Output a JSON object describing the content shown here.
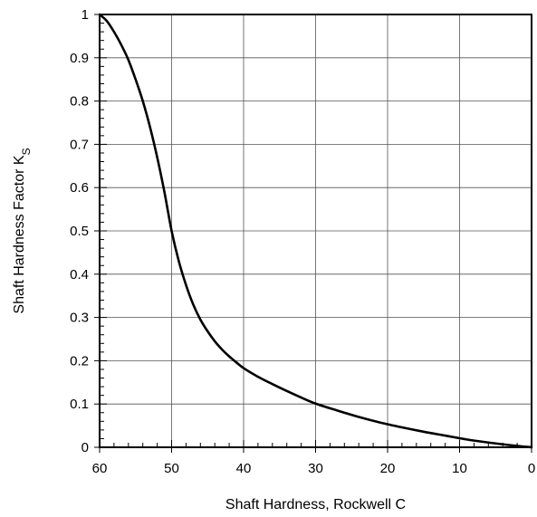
{
  "chart_data": {
    "type": "line",
    "title": "",
    "xlabel": "Shaft Hardness, Rockwell C",
    "ylabel": "Shaft Hardness Factor K",
    "ylabel_subscript": "S",
    "xlim": [
      60,
      0
    ],
    "ylim": [
      0,
      1
    ],
    "x_reversed": true,
    "grid": true,
    "x_ticks": [
      60,
      50,
      40,
      30,
      20,
      10,
      0
    ],
    "x_tick_labels": [
      "60",
      "50",
      "40",
      "30",
      "20",
      "10",
      "0"
    ],
    "y_ticks": [
      0,
      0.1,
      0.2,
      0.3,
      0.4,
      0.5,
      0.6,
      0.7,
      0.8,
      0.9,
      1
    ],
    "y_tick_labels": [
      "0",
      "0.1",
      "0.2",
      "0.3",
      "0.4",
      "0.5",
      "0.6",
      "0.7",
      "0.8",
      "0.9",
      "1"
    ],
    "line_color": "#000000",
    "series": [
      {
        "x": [
          60,
          59,
          58,
          57,
          56,
          55,
          54,
          53,
          52,
          51,
          50,
          49,
          48,
          47,
          46,
          45,
          44,
          43,
          42,
          41,
          40,
          38,
          36,
          34,
          32,
          30,
          27,
          24,
          21,
          18,
          15,
          12,
          9,
          6,
          3,
          0
        ],
        "y": [
          1.0,
          0.985,
          0.96,
          0.93,
          0.895,
          0.85,
          0.8,
          0.74,
          0.67,
          0.59,
          0.5,
          0.43,
          0.375,
          0.33,
          0.295,
          0.268,
          0.245,
          0.226,
          0.21,
          0.196,
          0.183,
          0.163,
          0.146,
          0.13,
          0.115,
          0.101,
          0.085,
          0.07,
          0.057,
          0.046,
          0.036,
          0.027,
          0.018,
          0.011,
          0.005,
          0.0
        ]
      }
    ]
  }
}
